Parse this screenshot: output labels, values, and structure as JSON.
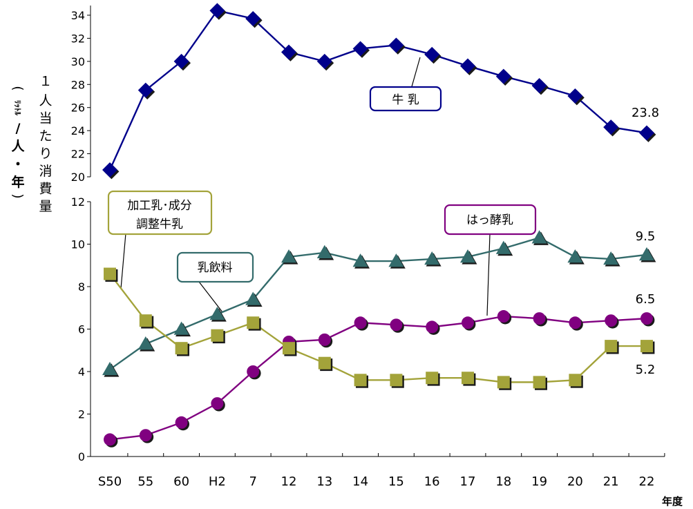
{
  "chart_data": {
    "type": "line",
    "categories": [
      "S50",
      "55",
      "60",
      "H2",
      "7",
      "12",
      "13",
      "14",
      "15",
      "16",
      "17",
      "18",
      "19",
      "20",
      "21",
      "22"
    ],
    "x_unit": "年度",
    "ylabel": {
      "number": "１",
      "main": [
        "人",
        "当",
        "た",
        "り",
        "消",
        "費",
        "量"
      ],
      "unit_paren_open": "(",
      "unit_small": "ﾘｯﾄﾙ",
      "unit_rest": [
        "/",
        "人",
        "・",
        "年"
      ],
      "unit_paren_close": ")"
    },
    "panels": [
      {
        "id": "upper",
        "ylim": [
          20,
          34
        ],
        "yticks": [
          20,
          22,
          24,
          26,
          28,
          30,
          32,
          34
        ],
        "series": [
          {
            "name": "牛 乳",
            "marker": "diamond",
            "color": "#00008b",
            "values": [
              20.6,
              27.5,
              30.0,
              34.4,
              33.7,
              30.8,
              30.0,
              31.1,
              31.4,
              30.6,
              29.6,
              28.7,
              27.9,
              27.0,
              24.3,
              23.8
            ],
            "end_label": "23.8"
          }
        ]
      },
      {
        "id": "lower",
        "ylim": [
          0,
          12
        ],
        "yticks": [
          0,
          2,
          4,
          6,
          8,
          10,
          12
        ],
        "series": [
          {
            "name": "乳飲料",
            "marker": "triangle",
            "color": "#336b6b",
            "values": [
              4.1,
              5.3,
              6.0,
              6.7,
              7.4,
              9.4,
              9.6,
              9.2,
              9.2,
              9.3,
              9.4,
              9.8,
              10.3,
              9.4,
              9.3,
              9.5
            ],
            "end_label": "9.5"
          },
          {
            "name": "はっ酵乳",
            "marker": "circle",
            "color": "#800080",
            "values": [
              0.8,
              1.0,
              1.6,
              2.5,
              4.0,
              5.4,
              5.5,
              6.3,
              6.2,
              6.1,
              6.3,
              6.6,
              6.5,
              6.3,
              6.4,
              6.5
            ],
            "end_label": "6.5"
          },
          {
            "name": "加工乳･成分\n調整牛乳",
            "marker": "square",
            "color": "#a3a33a",
            "values": [
              8.6,
              6.4,
              5.1,
              5.7,
              6.3,
              5.1,
              4.4,
              3.6,
              3.6,
              3.7,
              3.7,
              3.5,
              3.5,
              3.6,
              5.2,
              5.2
            ],
            "end_label": "5.2"
          }
        ]
      }
    ],
    "callouts": {
      "milk": "牛 乳",
      "processed_line1": "加工乳･成分",
      "processed_line2": "調整牛乳",
      "drink": "乳飲料",
      "fermented": "はっ酵乳"
    }
  }
}
